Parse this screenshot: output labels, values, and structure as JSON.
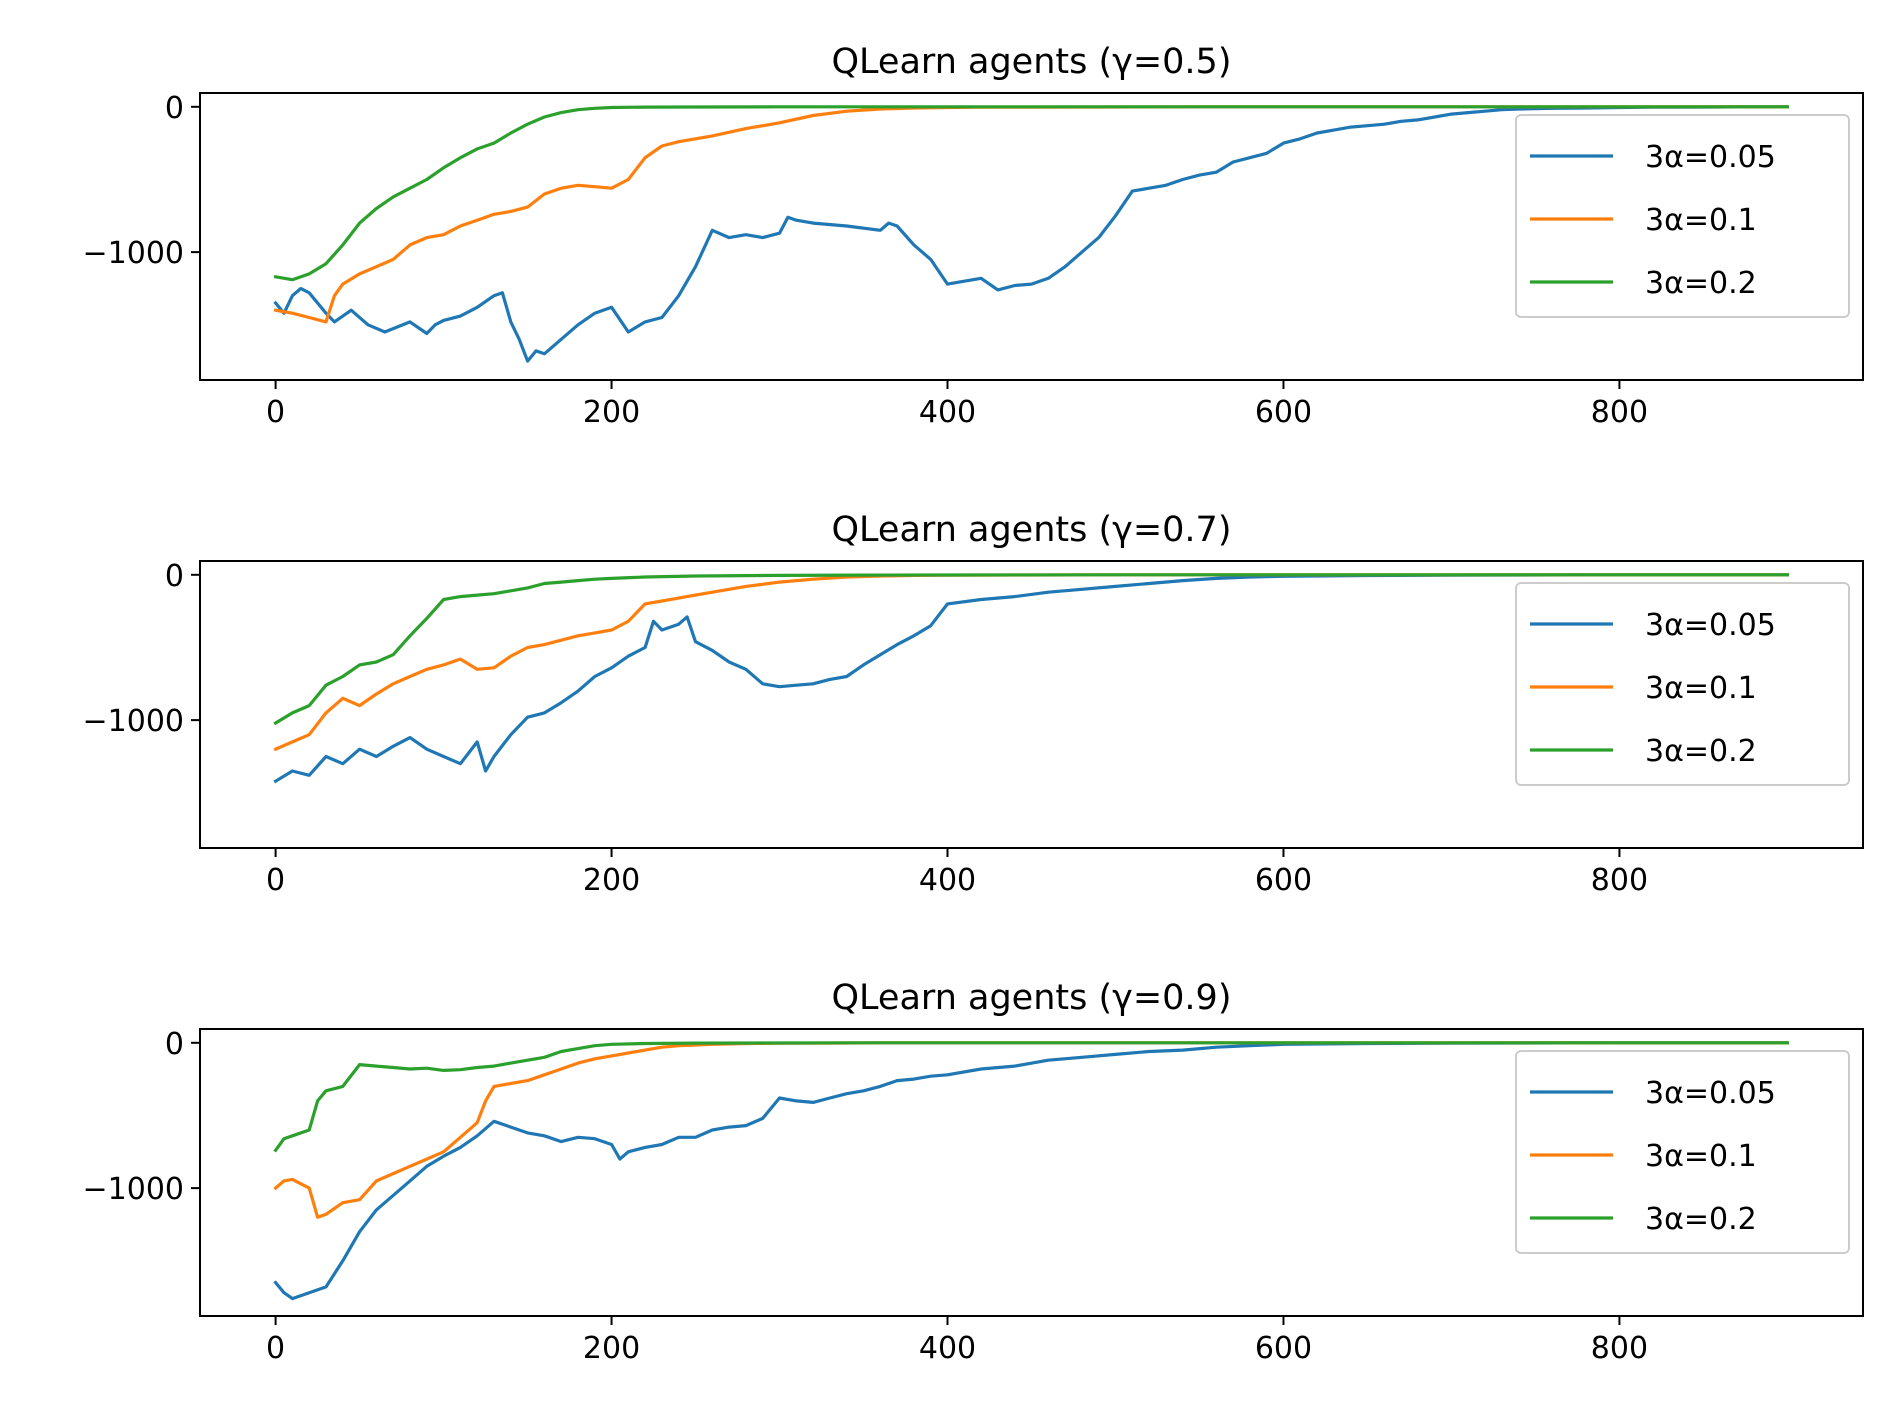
{
  "chart_data": [
    {
      "type": "line",
      "title": "QLearn agents (γ=0.5)",
      "xlabel": "",
      "ylabel": "",
      "xlim": [
        -45,
        945
      ],
      "ylim": [
        -1880,
        95
      ],
      "xticks": [
        0,
        200,
        400,
        600,
        800
      ],
      "xtick_labels": [
        "0",
        "200",
        "400",
        "600",
        "800"
      ],
      "yticks": [
        0,
        -1000
      ],
      "ytick_labels": [
        "0",
        "−1000"
      ],
      "grid": false,
      "legend_position": "right",
      "series": [
        {
          "name": "3α=0.05",
          "color": "#1f77b4",
          "x": [
            0,
            5,
            10,
            15,
            20,
            25,
            30,
            35,
            45,
            55,
            65,
            80,
            90,
            95,
            100,
            110,
            120,
            130,
            135,
            140,
            145,
            150,
            155,
            160,
            170,
            180,
            190,
            200,
            210,
            220,
            230,
            240,
            250,
            260,
            270,
            280,
            290,
            300,
            305,
            310,
            320,
            340,
            360,
            365,
            370,
            380,
            390,
            400,
            410,
            420,
            430,
            440,
            450,
            460,
            470,
            480,
            490,
            500,
            510,
            520,
            530,
            540,
            550,
            560,
            570,
            580,
            590,
            600,
            610,
            620,
            630,
            640,
            650,
            660,
            670,
            680,
            690,
            700,
            710,
            720,
            730,
            740,
            760,
            780,
            800,
            820,
            840,
            860,
            880,
            900
          ],
          "y": [
            -1350,
            -1420,
            -1300,
            -1250,
            -1280,
            -1350,
            -1420,
            -1480,
            -1400,
            -1500,
            -1550,
            -1480,
            -1560,
            -1500,
            -1470,
            -1440,
            -1380,
            -1300,
            -1280,
            -1480,
            -1600,
            -1750,
            -1680,
            -1700,
            -1600,
            -1500,
            -1420,
            -1380,
            -1550,
            -1480,
            -1450,
            -1300,
            -1100,
            -850,
            -900,
            -880,
            -900,
            -870,
            -760,
            -780,
            -800,
            -820,
            -850,
            -800,
            -820,
            -950,
            -1050,
            -1220,
            -1200,
            -1180,
            -1260,
            -1230,
            -1220,
            -1180,
            -1100,
            -1000,
            -900,
            -750,
            -580,
            -560,
            -540,
            -500,
            -470,
            -450,
            -380,
            -350,
            -320,
            -250,
            -220,
            -180,
            -160,
            -140,
            -130,
            -120,
            -100,
            -90,
            -70,
            -50,
            -40,
            -30,
            -20,
            -15,
            -10,
            -8,
            -5,
            -3,
            -2,
            -1,
            0,
            0
          ]
        },
        {
          "name": "3α=0.1",
          "color": "#ff7f0e",
          "x": [
            0,
            10,
            20,
            30,
            35,
            40,
            50,
            60,
            70,
            80,
            90,
            100,
            110,
            120,
            130,
            140,
            150,
            160,
            170,
            180,
            190,
            200,
            210,
            220,
            230,
            240,
            250,
            260,
            280,
            300,
            320,
            340,
            360,
            380,
            400,
            420,
            450,
            500,
            550,
            600,
            700,
            800,
            900
          ],
          "y": [
            -1400,
            -1420,
            -1450,
            -1480,
            -1300,
            -1220,
            -1150,
            -1100,
            -1050,
            -950,
            -900,
            -880,
            -820,
            -780,
            -740,
            -720,
            -690,
            -600,
            -560,
            -540,
            -550,
            -560,
            -500,
            -350,
            -270,
            -240,
            -220,
            -200,
            -150,
            -110,
            -60,
            -30,
            -15,
            -8,
            -5,
            -3,
            -2,
            -1,
            0,
            0,
            0,
            0,
            0
          ]
        },
        {
          "name": "3α=0.2",
          "color": "#2ca02c",
          "x": [
            0,
            10,
            20,
            30,
            40,
            50,
            60,
            70,
            80,
            90,
            100,
            110,
            120,
            130,
            140,
            150,
            160,
            170,
            180,
            190,
            200,
            220,
            250,
            300,
            400,
            500,
            600,
            700,
            800,
            900
          ],
          "y": [
            -1170,
            -1190,
            -1150,
            -1080,
            -950,
            -800,
            -700,
            -620,
            -560,
            -500,
            -420,
            -350,
            -290,
            -250,
            -180,
            -120,
            -70,
            -40,
            -20,
            -10,
            -5,
            -2,
            -1,
            0,
            0,
            0,
            0,
            0,
            0,
            0
          ]
        }
      ]
    },
    {
      "type": "line",
      "title": "QLearn agents (γ=0.7)",
      "xlabel": "",
      "ylabel": "",
      "xlim": [
        -45,
        945
      ],
      "ylim": [
        -1880,
        95
      ],
      "xticks": [
        0,
        200,
        400,
        600,
        800
      ],
      "xtick_labels": [
        "0",
        "200",
        "400",
        "600",
        "800"
      ],
      "yticks": [
        0,
        -1000
      ],
      "ytick_labels": [
        "0",
        "−1000"
      ],
      "grid": false,
      "legend_position": "right",
      "series": [
        {
          "name": "3α=0.05",
          "color": "#1f77b4",
          "x": [
            0,
            10,
            20,
            30,
            40,
            50,
            60,
            70,
            80,
            90,
            100,
            110,
            120,
            125,
            130,
            140,
            150,
            160,
            170,
            180,
            190,
            200,
            210,
            220,
            225,
            230,
            240,
            245,
            250,
            260,
            270,
            280,
            290,
            300,
            310,
            320,
            330,
            340,
            350,
            360,
            370,
            380,
            390,
            400,
            420,
            440,
            460,
            480,
            500,
            520,
            540,
            560,
            580,
            600,
            650,
            700,
            800,
            900
          ],
          "y": [
            -1420,
            -1350,
            -1380,
            -1250,
            -1300,
            -1200,
            -1250,
            -1180,
            -1120,
            -1200,
            -1250,
            -1300,
            -1150,
            -1350,
            -1250,
            -1100,
            -980,
            -950,
            -880,
            -800,
            -700,
            -640,
            -560,
            -500,
            -320,
            -380,
            -340,
            -290,
            -460,
            -520,
            -600,
            -650,
            -750,
            -770,
            -760,
            -750,
            -720,
            -700,
            -620,
            -550,
            -480,
            -420,
            -350,
            -200,
            -170,
            -150,
            -120,
            -100,
            -80,
            -60,
            -40,
            -25,
            -15,
            -10,
            -5,
            -2,
            0,
            0
          ]
        },
        {
          "name": "3α=0.1",
          "color": "#ff7f0e",
          "x": [
            0,
            10,
            20,
            30,
            40,
            50,
            60,
            70,
            80,
            90,
            100,
            110,
            120,
            130,
            140,
            150,
            160,
            170,
            180,
            190,
            200,
            210,
            220,
            230,
            240,
            250,
            260,
            280,
            300,
            320,
            340,
            360,
            380,
            400,
            450,
            500,
            600,
            700,
            800,
            900
          ],
          "y": [
            -1200,
            -1150,
            -1100,
            -950,
            -850,
            -900,
            -820,
            -750,
            -700,
            -650,
            -620,
            -580,
            -650,
            -640,
            -560,
            -500,
            -480,
            -450,
            -420,
            -400,
            -380,
            -320,
            -200,
            -180,
            -160,
            -140,
            -120,
            -80,
            -50,
            -30,
            -15,
            -8,
            -4,
            -2,
            -1,
            0,
            0,
            0,
            0,
            0
          ]
        },
        {
          "name": "3α=0.2",
          "color": "#2ca02c",
          "x": [
            0,
            10,
            20,
            30,
            40,
            50,
            60,
            70,
            80,
            90,
            100,
            110,
            120,
            130,
            140,
            150,
            160,
            170,
            180,
            190,
            200,
            220,
            250,
            300,
            350,
            400,
            500,
            600,
            700,
            800,
            900
          ],
          "y": [
            -1020,
            -950,
            -900,
            -760,
            -700,
            -620,
            -600,
            -550,
            -420,
            -300,
            -170,
            -150,
            -140,
            -130,
            -110,
            -90,
            -60,
            -50,
            -40,
            -30,
            -25,
            -15,
            -8,
            -4,
            -2,
            -1,
            0,
            0,
            0,
            0,
            0
          ]
        }
      ]
    },
    {
      "type": "line",
      "title": "QLearn agents (γ=0.9)",
      "xlabel": "",
      "ylabel": "",
      "xlim": [
        -45,
        945
      ],
      "ylim": [
        -1880,
        95
      ],
      "xticks": [
        0,
        200,
        400,
        600,
        800
      ],
      "xtick_labels": [
        "0",
        "200",
        "400",
        "600",
        "800"
      ],
      "yticks": [
        0,
        -1000
      ],
      "ytick_labels": [
        "0",
        "−1000"
      ],
      "grid": false,
      "legend_position": "right",
      "series": [
        {
          "name": "3α=0.05",
          "color": "#1f77b4",
          "x": [
            0,
            5,
            10,
            20,
            30,
            40,
            50,
            60,
            70,
            80,
            90,
            100,
            110,
            120,
            130,
            140,
            150,
            160,
            170,
            180,
            190,
            200,
            205,
            210,
            220,
            230,
            240,
            250,
            260,
            270,
            280,
            290,
            300,
            310,
            320,
            330,
            340,
            350,
            360,
            370,
            380,
            390,
            400,
            420,
            440,
            460,
            480,
            500,
            520,
            540,
            560,
            580,
            600,
            650,
            700,
            800,
            900
          ],
          "y": [
            -1650,
            -1720,
            -1760,
            -1720,
            -1680,
            -1500,
            -1300,
            -1150,
            -1050,
            -950,
            -850,
            -780,
            -720,
            -640,
            -540,
            -580,
            -620,
            -640,
            -680,
            -650,
            -660,
            -700,
            -800,
            -750,
            -720,
            -700,
            -650,
            -650,
            -600,
            -580,
            -570,
            -520,
            -380,
            -400,
            -410,
            -380,
            -350,
            -330,
            -300,
            -260,
            -250,
            -230,
            -220,
            -180,
            -160,
            -120,
            -100,
            -80,
            -60,
            -50,
            -30,
            -20,
            -10,
            -5,
            -2,
            0,
            0
          ]
        },
        {
          "name": "3α=0.1",
          "color": "#ff7f0e",
          "x": [
            0,
            5,
            10,
            20,
            25,
            30,
            40,
            50,
            60,
            70,
            80,
            90,
            100,
            110,
            120,
            125,
            130,
            140,
            150,
            160,
            170,
            180,
            190,
            200,
            210,
            220,
            230,
            240,
            250,
            260,
            280,
            300,
            320,
            340,
            360,
            380,
            400,
            450,
            500,
            600,
            700,
            800,
            900
          ],
          "y": [
            -1000,
            -950,
            -940,
            -1000,
            -1200,
            -1180,
            -1100,
            -1080,
            -950,
            -900,
            -850,
            -800,
            -750,
            -650,
            -550,
            -400,
            -300,
            -280,
            -260,
            -220,
            -180,
            -140,
            -110,
            -90,
            -70,
            -50,
            -30,
            -20,
            -15,
            -10,
            -5,
            -3,
            -2,
            -1,
            0,
            0,
            0,
            0,
            0,
            0,
            0,
            0,
            0
          ]
        },
        {
          "name": "3α=0.2",
          "color": "#2ca02c",
          "x": [
            0,
            5,
            10,
            20,
            25,
            30,
            40,
            50,
            60,
            70,
            80,
            90,
            100,
            110,
            120,
            130,
            140,
            150,
            160,
            170,
            180,
            190,
            200,
            220,
            250,
            300,
            350,
            400,
            500,
            600,
            700,
            800,
            900
          ],
          "y": [
            -740,
            -660,
            -640,
            -600,
            -400,
            -330,
            -300,
            -150,
            -160,
            -170,
            -180,
            -175,
            -190,
            -185,
            -170,
            -160,
            -140,
            -120,
            -100,
            -60,
            -40,
            -20,
            -10,
            -5,
            -2,
            -1,
            0,
            0,
            0,
            0,
            0,
            0,
            0
          ]
        }
      ]
    }
  ]
}
